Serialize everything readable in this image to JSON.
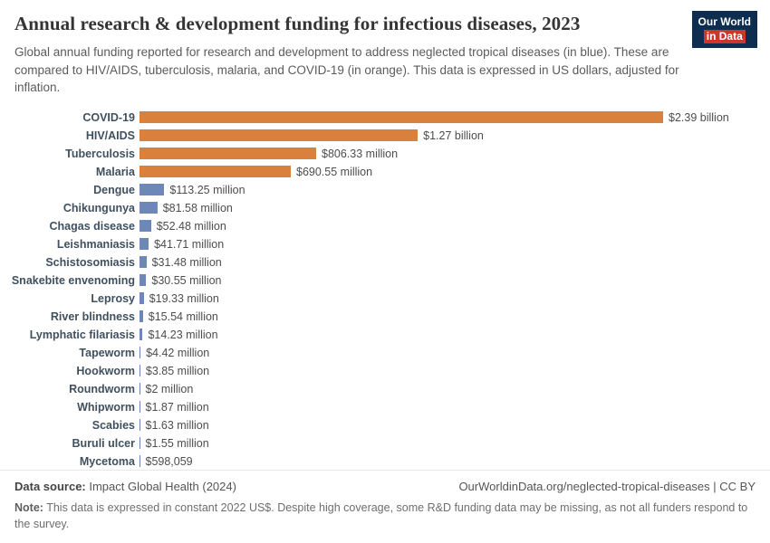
{
  "header": {
    "title": "Annual research & development funding for infectious diseases, 2023",
    "subtitle": "Global annual funding reported for research and development to address neglected tropical diseases (in blue). These are compared to HIV/AIDS, tuberculosis, malaria, and COVID-19 (in orange). This data is expressed in US dollars, adjusted for inflation.",
    "logo": {
      "line1": "Our World",
      "line2": "in Data"
    }
  },
  "brand_colors": {
    "navy": "#0F2E4F",
    "red": "#CE362C"
  },
  "chart_data": {
    "type": "bar",
    "orientation": "horizontal",
    "title": "Annual research & development funding for infectious diseases, 2023",
    "xlabel": "",
    "ylabel": "",
    "unit": "US$ (inflation-adjusted)",
    "xlim_million_usd": [
      0,
      2390
    ],
    "grid": false,
    "legend": "none",
    "categories": [
      "COVID-19",
      "HIV/AIDS",
      "Tuberculosis",
      "Malaria",
      "Dengue",
      "Chikungunya",
      "Chagas disease",
      "Leishmaniasis",
      "Schistosomiasis",
      "Snakebite envenoming",
      "Leprosy",
      "River blindness",
      "Lymphatic filariasis",
      "Tapeworm",
      "Hookworm",
      "Roundworm",
      "Whipworm",
      "Scabies",
      "Buruli ulcer",
      "Mycetoma"
    ],
    "values_million_usd": [
      2390,
      1270,
      806.33,
      690.55,
      113.25,
      81.58,
      52.48,
      41.71,
      31.48,
      30.55,
      19.33,
      15.54,
      14.23,
      4.42,
      3.85,
      2,
      1.87,
      1.63,
      1.55,
      0.598059
    ],
    "value_labels": [
      "$2.39 billion",
      "$1.27 billion",
      "$806.33 million",
      "$690.55 million",
      "$113.25 million",
      "$81.58 million",
      "$52.48 million",
      "$41.71 million",
      "$31.48 million",
      "$30.55 million",
      "$19.33 million",
      "$15.54 million",
      "$14.23 million",
      "$4.42 million",
      "$3.85 million",
      "$2 million",
      "$1.87 million",
      "$1.63 million",
      "$1.55 million",
      "$598,059"
    ],
    "groups": [
      "comparison",
      "comparison",
      "comparison",
      "comparison",
      "ntd",
      "ntd",
      "ntd",
      "ntd",
      "ntd",
      "ntd",
      "ntd",
      "ntd",
      "ntd",
      "ntd",
      "ntd",
      "ntd",
      "ntd",
      "ntd",
      "ntd",
      "ntd"
    ],
    "colors": {
      "comparison": "#D8803C",
      "ntd": "#6D87B8"
    }
  },
  "footer": {
    "datasource_label": "Data source:",
    "datasource": " Impact Global Health (2024)",
    "right_link": "OurWorldinData.org/neglected-tropical-diseases | CC BY",
    "note_label": "Note:",
    "note": " This data is expressed in constant 2022 US$. Despite high coverage, some R&D funding data may be missing, as not all funders respond to the survey."
  }
}
